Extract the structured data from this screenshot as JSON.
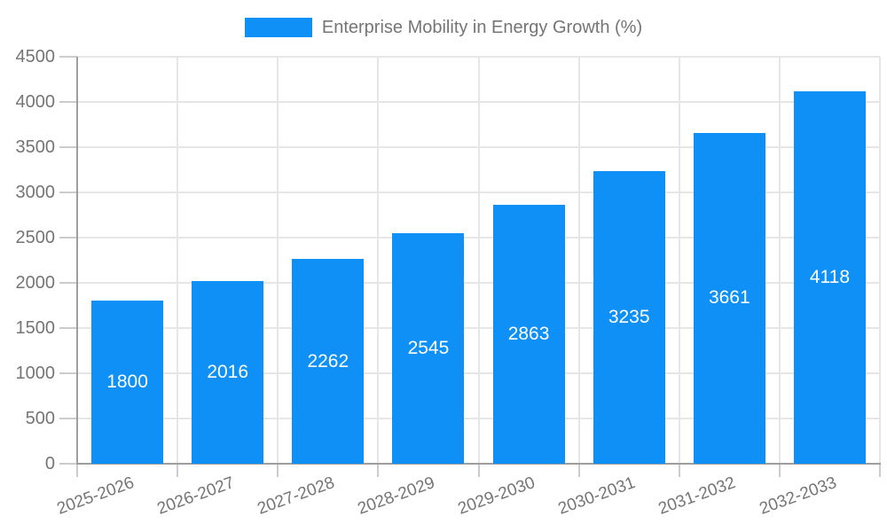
{
  "chart_data": {
    "type": "bar",
    "title": "Enterprise Mobility in Energy Growth (%)",
    "legend_position": "top-center",
    "categories": [
      "2025-2026",
      "2026-2027",
      "2027-2028",
      "2028-2029",
      "2029-2030",
      "2030-2031",
      "2031-2032",
      "2032-2033"
    ],
    "values": [
      1800,
      2016,
      2262,
      2545,
      2863,
      3235,
      3661,
      4118
    ],
    "xlabel": "",
    "ylabel": "",
    "ylim": [
      0,
      4500
    ],
    "yticks": [
      0,
      500,
      1000,
      1500,
      2000,
      2500,
      3000,
      3500,
      4000,
      4500
    ],
    "grid": true,
    "x_label_rotation_deg": -20,
    "colors": {
      "bar": "#0e90f6",
      "value_label": "#ffffff",
      "axis_text": "#757575",
      "gridline": "#e6e6e6",
      "tick": "#cccccc",
      "axis_line": "#9e9e9e",
      "background": "#ffffff"
    }
  }
}
